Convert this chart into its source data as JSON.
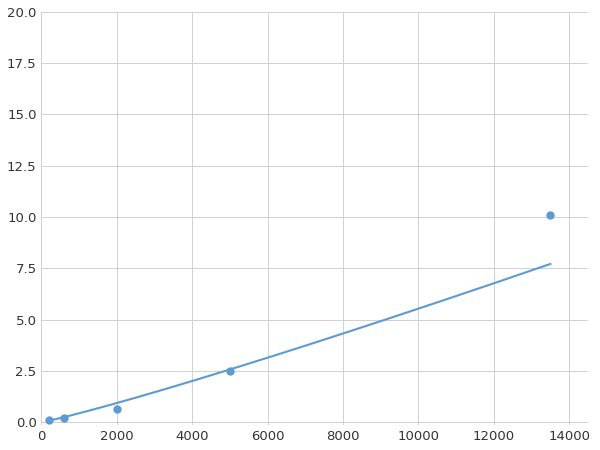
{
  "x_points": [
    200,
    600,
    2000,
    5000,
    13500
  ],
  "y_points": [
    0.1,
    0.2,
    0.65,
    2.5,
    10.1
  ],
  "line_color": "#5b9bd5",
  "marker_color": "#5b9bd5",
  "marker_size": 6,
  "xlim": [
    0,
    14500
  ],
  "ylim": [
    -0.15,
    20.0
  ],
  "xticks": [
    0,
    2000,
    4000,
    6000,
    8000,
    10000,
    12000,
    14000
  ],
  "yticks": [
    0.0,
    2.5,
    5.0,
    7.5,
    10.0,
    12.5,
    15.0,
    17.5,
    20.0
  ],
  "grid_color": "#d0d0d0",
  "background_color": "#ffffff",
  "figsize": [
    6.0,
    4.5
  ],
  "dpi": 100
}
